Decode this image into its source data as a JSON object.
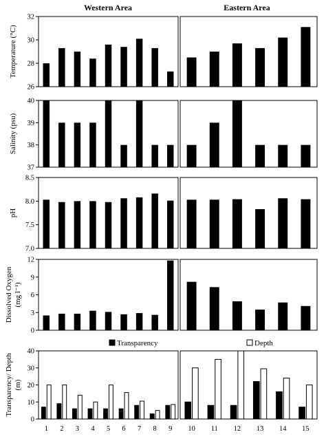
{
  "titles": {
    "western": "Western Area",
    "eastern": "Eastern Area"
  },
  "legend": {
    "transparency": "Transparency",
    "depth": "Depth"
  },
  "chart_data": [
    {
      "type": "bar",
      "ylabel": "Temperature (°C)",
      "ylim": [
        26,
        32
      ],
      "yticks": [
        26,
        28,
        30,
        32
      ],
      "western": {
        "x": [
          "1",
          "2",
          "3",
          "4",
          "5",
          "6",
          "7",
          "8",
          "9"
        ],
        "values": [
          28.0,
          29.3,
          29.0,
          28.4,
          29.6,
          29.4,
          30.1,
          29.3,
          27.3
        ]
      },
      "eastern": {
        "x": [
          "10",
          "11",
          "12",
          "13",
          "14",
          "15"
        ],
        "values": [
          28.5,
          29.0,
          29.7,
          29.3,
          30.2,
          31.1
        ]
      }
    },
    {
      "type": "bar",
      "ylabel": "Salinity (psu)",
      "ylim": [
        37,
        40
      ],
      "yticks": [
        37,
        38,
        39,
        40
      ],
      "western": {
        "x": [
          "1",
          "2",
          "3",
          "4",
          "5",
          "6",
          "7",
          "8",
          "9"
        ],
        "values": [
          40,
          39,
          39,
          39,
          40,
          38,
          40,
          38,
          38
        ]
      },
      "eastern": {
        "x": [
          "10",
          "11",
          "12",
          "13",
          "14",
          "15"
        ],
        "values": [
          38,
          39,
          40,
          38,
          38,
          38
        ]
      }
    },
    {
      "type": "bar",
      "ylabel": "pH",
      "ylim": [
        7.0,
        8.5
      ],
      "yticks": [
        "7.0",
        "7.5",
        "8.0",
        "8.5"
      ],
      "western": {
        "x": [
          "1",
          "2",
          "3",
          "4",
          "5",
          "6",
          "7",
          "8",
          "9"
        ],
        "values": [
          8.03,
          7.98,
          8.0,
          8.0,
          7.98,
          8.06,
          8.08,
          8.16,
          8.01
        ]
      },
      "eastern": {
        "x": [
          "10",
          "11",
          "12",
          "13",
          "14",
          "15"
        ],
        "values": [
          8.03,
          8.03,
          8.04,
          7.83,
          8.06,
          8.04
        ]
      }
    },
    {
      "type": "bar",
      "ylabel": "Dissolved Oxygen (mg l⁻¹)",
      "ylim": [
        0,
        12
      ],
      "yticks": [
        0,
        3,
        6,
        9,
        12
      ],
      "western": {
        "x": [
          "1",
          "2",
          "3",
          "4",
          "5",
          "6",
          "7",
          "8",
          "9"
        ],
        "values": [
          2.5,
          2.8,
          2.8,
          3.3,
          3.1,
          2.7,
          2.9,
          2.6,
          11.8
        ]
      },
      "eastern": {
        "x": [
          "10",
          "11",
          "12",
          "13",
          "14",
          "15"
        ],
        "values": [
          8.2,
          7.3,
          4.9,
          3.5,
          4.7,
          4.1
        ]
      }
    },
    {
      "type": "bar",
      "ylabel": "Transparency/ Depth (m)",
      "ylim": [
        0,
        40
      ],
      "yticks": [
        0,
        10,
        20,
        30,
        40
      ],
      "western": {
        "x": [
          "1",
          "2",
          "3",
          "4",
          "5",
          "6",
          "7",
          "8",
          "9"
        ],
        "series": [
          {
            "name": "Transparency",
            "values": [
              7,
              9,
              6,
              6,
              6,
              6,
              8,
              3,
              8
            ]
          },
          {
            "name": "Depth",
            "values": [
              20,
              20,
              14,
              10,
              20,
              15.5,
              10.5,
              5,
              8.5
            ]
          }
        ]
      },
      "eastern": {
        "x": [
          "10",
          "11",
          "12",
          "13",
          "14",
          "15"
        ],
        "series": [
          {
            "name": "Transparency",
            "values": [
              10,
              8,
              8,
              22,
              16,
              7
            ]
          },
          {
            "name": "Depth",
            "values": [
              30,
              35,
              40,
              29.5,
              24,
              20
            ]
          }
        ]
      }
    }
  ]
}
